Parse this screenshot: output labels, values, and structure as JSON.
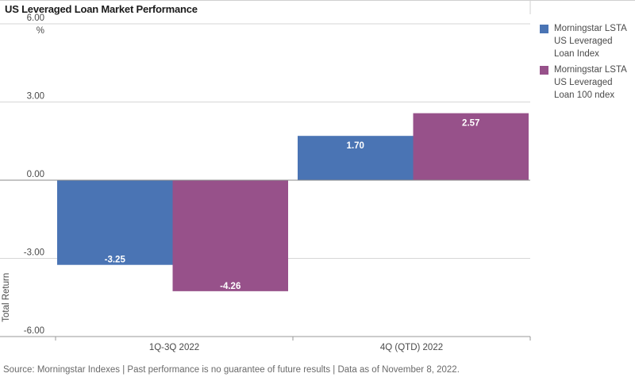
{
  "title": "US Leveraged Loan Market Performance",
  "footer": "Source: Morningstar Indexes | Past performance is no guarantee of future results | Data as of November 8, 2022.",
  "chart_data": {
    "type": "bar",
    "title": "US Leveraged Loan Market Performance",
    "xlabel": "",
    "ylabel": "Total Return",
    "y_unit": "%",
    "ylim": [
      -6,
      6
    ],
    "yticks": [
      6,
      3,
      0,
      -3,
      -6
    ],
    "ytick_labels": [
      "6.00",
      "3.00",
      "0.00",
      "-3.00",
      "-6.00"
    ],
    "categories": [
      "1Q-3Q 2022",
      "4Q (QTD) 2022"
    ],
    "grid": true,
    "legend_position": "right",
    "series": [
      {
        "name": "Morningstar LSTA US Leveraged Loan Index",
        "values": [
          -3.25,
          1.7
        ],
        "labels": [
          "-3.25",
          "1.70"
        ],
        "color": "#4a74b4"
      },
      {
        "name": "Morningstar LSTA US Leveraged Loan 100 ndex",
        "values": [
          -4.26,
          2.57
        ],
        "labels": [
          "-4.26",
          "2.57"
        ],
        "color": "#97518a"
      }
    ]
  }
}
